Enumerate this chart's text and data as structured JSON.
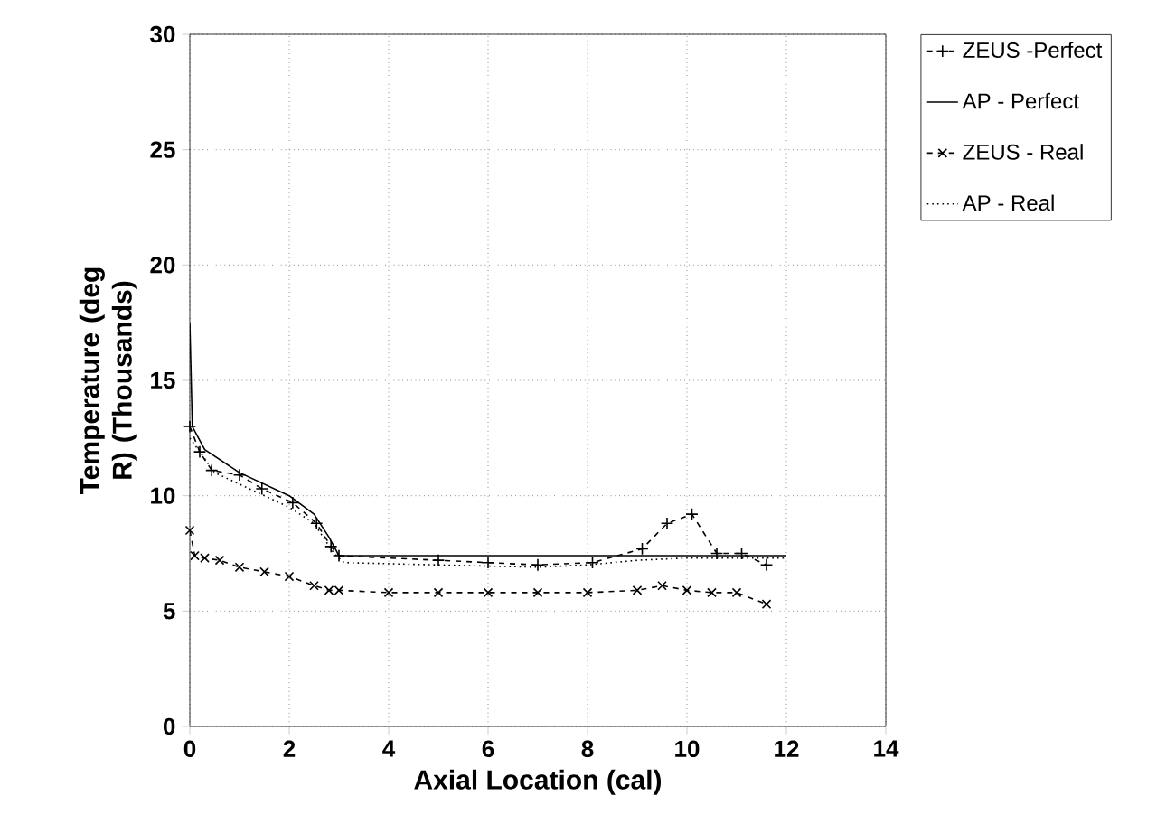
{
  "chart_data": {
    "type": "line",
    "xlabel": "Axial Location (cal)",
    "ylabel": "Temperature (deg R) (Thousands)",
    "xlim": [
      0,
      14
    ],
    "ylim": [
      0,
      30
    ],
    "xticks": [
      0,
      2,
      4,
      6,
      8,
      10,
      12,
      14
    ],
    "yticks": [
      0,
      5,
      10,
      15,
      20,
      25,
      30
    ],
    "grid": true,
    "legend": "right",
    "series": [
      {
        "name": "ZEUS -Perfect",
        "color": "#000000",
        "line_style": "dashed",
        "marker": "plus",
        "x": [
          0,
          0.2,
          0.44,
          1.0,
          1.45,
          2.07,
          2.55,
          2.84,
          3.0,
          5.0,
          6.0,
          7.0,
          8.1,
          9.1,
          9.6,
          10.1,
          10.6,
          11.1,
          11.6
        ],
        "values": [
          13,
          11.9,
          11.1,
          10.9,
          10.3,
          9.7,
          8.8,
          7.8,
          7.4,
          7.2,
          7.1,
          7.0,
          7.1,
          7.7,
          8.8,
          9.2,
          7.5,
          7.5,
          7.0
        ]
      },
      {
        "name": "AP - Perfect",
        "color": "#000000",
        "line_style": "solid",
        "marker": "none",
        "x": [
          0,
          0.05,
          0.3,
          1.0,
          2.0,
          2.5,
          2.8,
          2.95,
          3.0,
          12.0
        ],
        "values": [
          17.5,
          13,
          12,
          11,
          10,
          9.2,
          8.2,
          7.6,
          7.4,
          7.4
        ]
      },
      {
        "name": "ZEUS - Real",
        "color": "#000000",
        "line_style": "dashed",
        "marker": "cross",
        "x": [
          0,
          0.1,
          0.3,
          0.6,
          1.0,
          1.5,
          2.0,
          2.5,
          2.8,
          3.0,
          4.0,
          5.0,
          6.0,
          7.0,
          8.0,
          9.0,
          9.5,
          10.0,
          10.5,
          11.0,
          11.6
        ],
        "values": [
          8.5,
          7.4,
          7.3,
          7.2,
          6.9,
          6.7,
          6.5,
          6.1,
          5.9,
          5.9,
          5.8,
          5.8,
          5.8,
          5.8,
          5.8,
          5.9,
          6.1,
          5.9,
          5.8,
          5.8,
          5.3
        ]
      },
      {
        "name": "AP - Real",
        "color": "#000000",
        "line_style": "dotted",
        "marker": "none",
        "x": [
          0,
          0.5,
          1.0,
          2.0,
          2.5,
          2.9,
          3.1,
          5.0,
          7.0,
          8.0,
          9.0,
          10.0,
          12.0
        ],
        "values": [
          12.5,
          11,
          10.5,
          9.5,
          8.8,
          7.5,
          7.1,
          7.0,
          6.9,
          7.0,
          7.2,
          7.3,
          7.3
        ]
      }
    ]
  }
}
